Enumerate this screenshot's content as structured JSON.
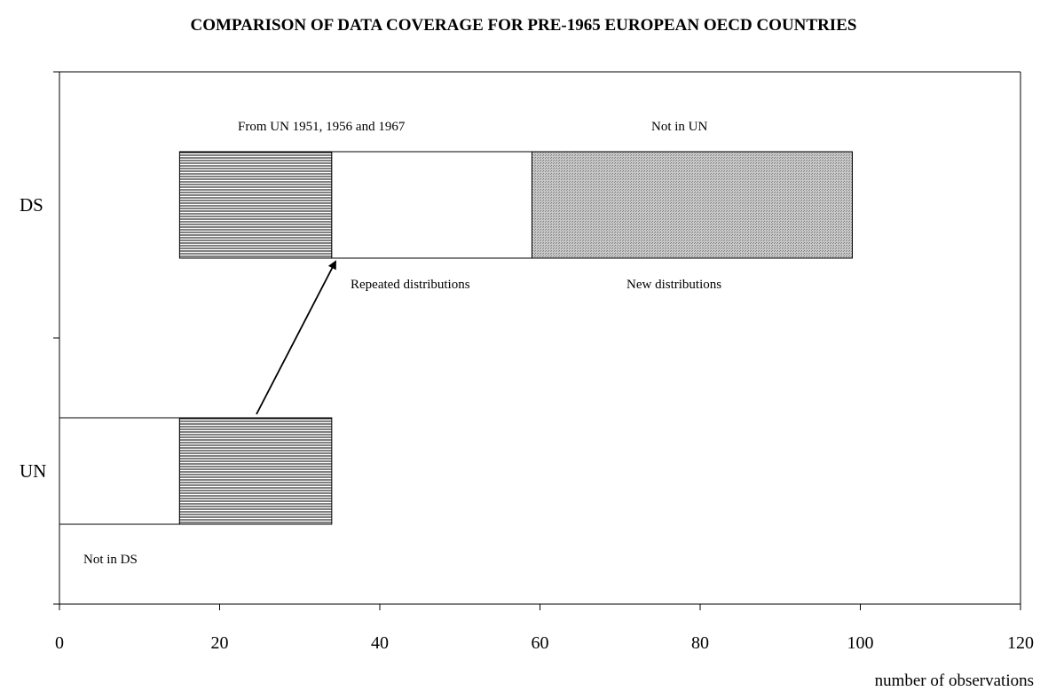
{
  "chart_data": {
    "type": "bar",
    "orientation": "horizontal",
    "stacked": true,
    "title": "COMPARISON OF DATA COVERAGE FOR PRE-1965 EUROPEAN OECD COUNTRIES",
    "xlabel": "number of observations",
    "ylabel": "",
    "xlim": [
      0,
      120
    ],
    "x_ticks": [
      0,
      20,
      40,
      60,
      80,
      100,
      120
    ],
    "categories": [
      "DS",
      "UN"
    ],
    "grid": false,
    "bars": [
      {
        "category": "DS",
        "segments": [
          {
            "start": 0,
            "end": 15,
            "fill": "none"
          },
          {
            "start": 15,
            "end": 34,
            "fill": "horizontal-lines"
          },
          {
            "start": 34,
            "end": 59,
            "fill": "white"
          },
          {
            "start": 59,
            "end": 99,
            "fill": "dotted-gray"
          }
        ]
      },
      {
        "category": "UN",
        "segments": [
          {
            "start": 0,
            "end": 15,
            "fill": "white"
          },
          {
            "start": 15,
            "end": 34,
            "fill": "horizontal-lines"
          }
        ]
      }
    ],
    "annotations": {
      "from_un": "From UN 1951, 1956 and 1967",
      "not_in_un": "Not in UN",
      "repeated": "Repeated distributions",
      "new_dist": "New distributions",
      "not_in_ds": "Not in DS"
    }
  }
}
